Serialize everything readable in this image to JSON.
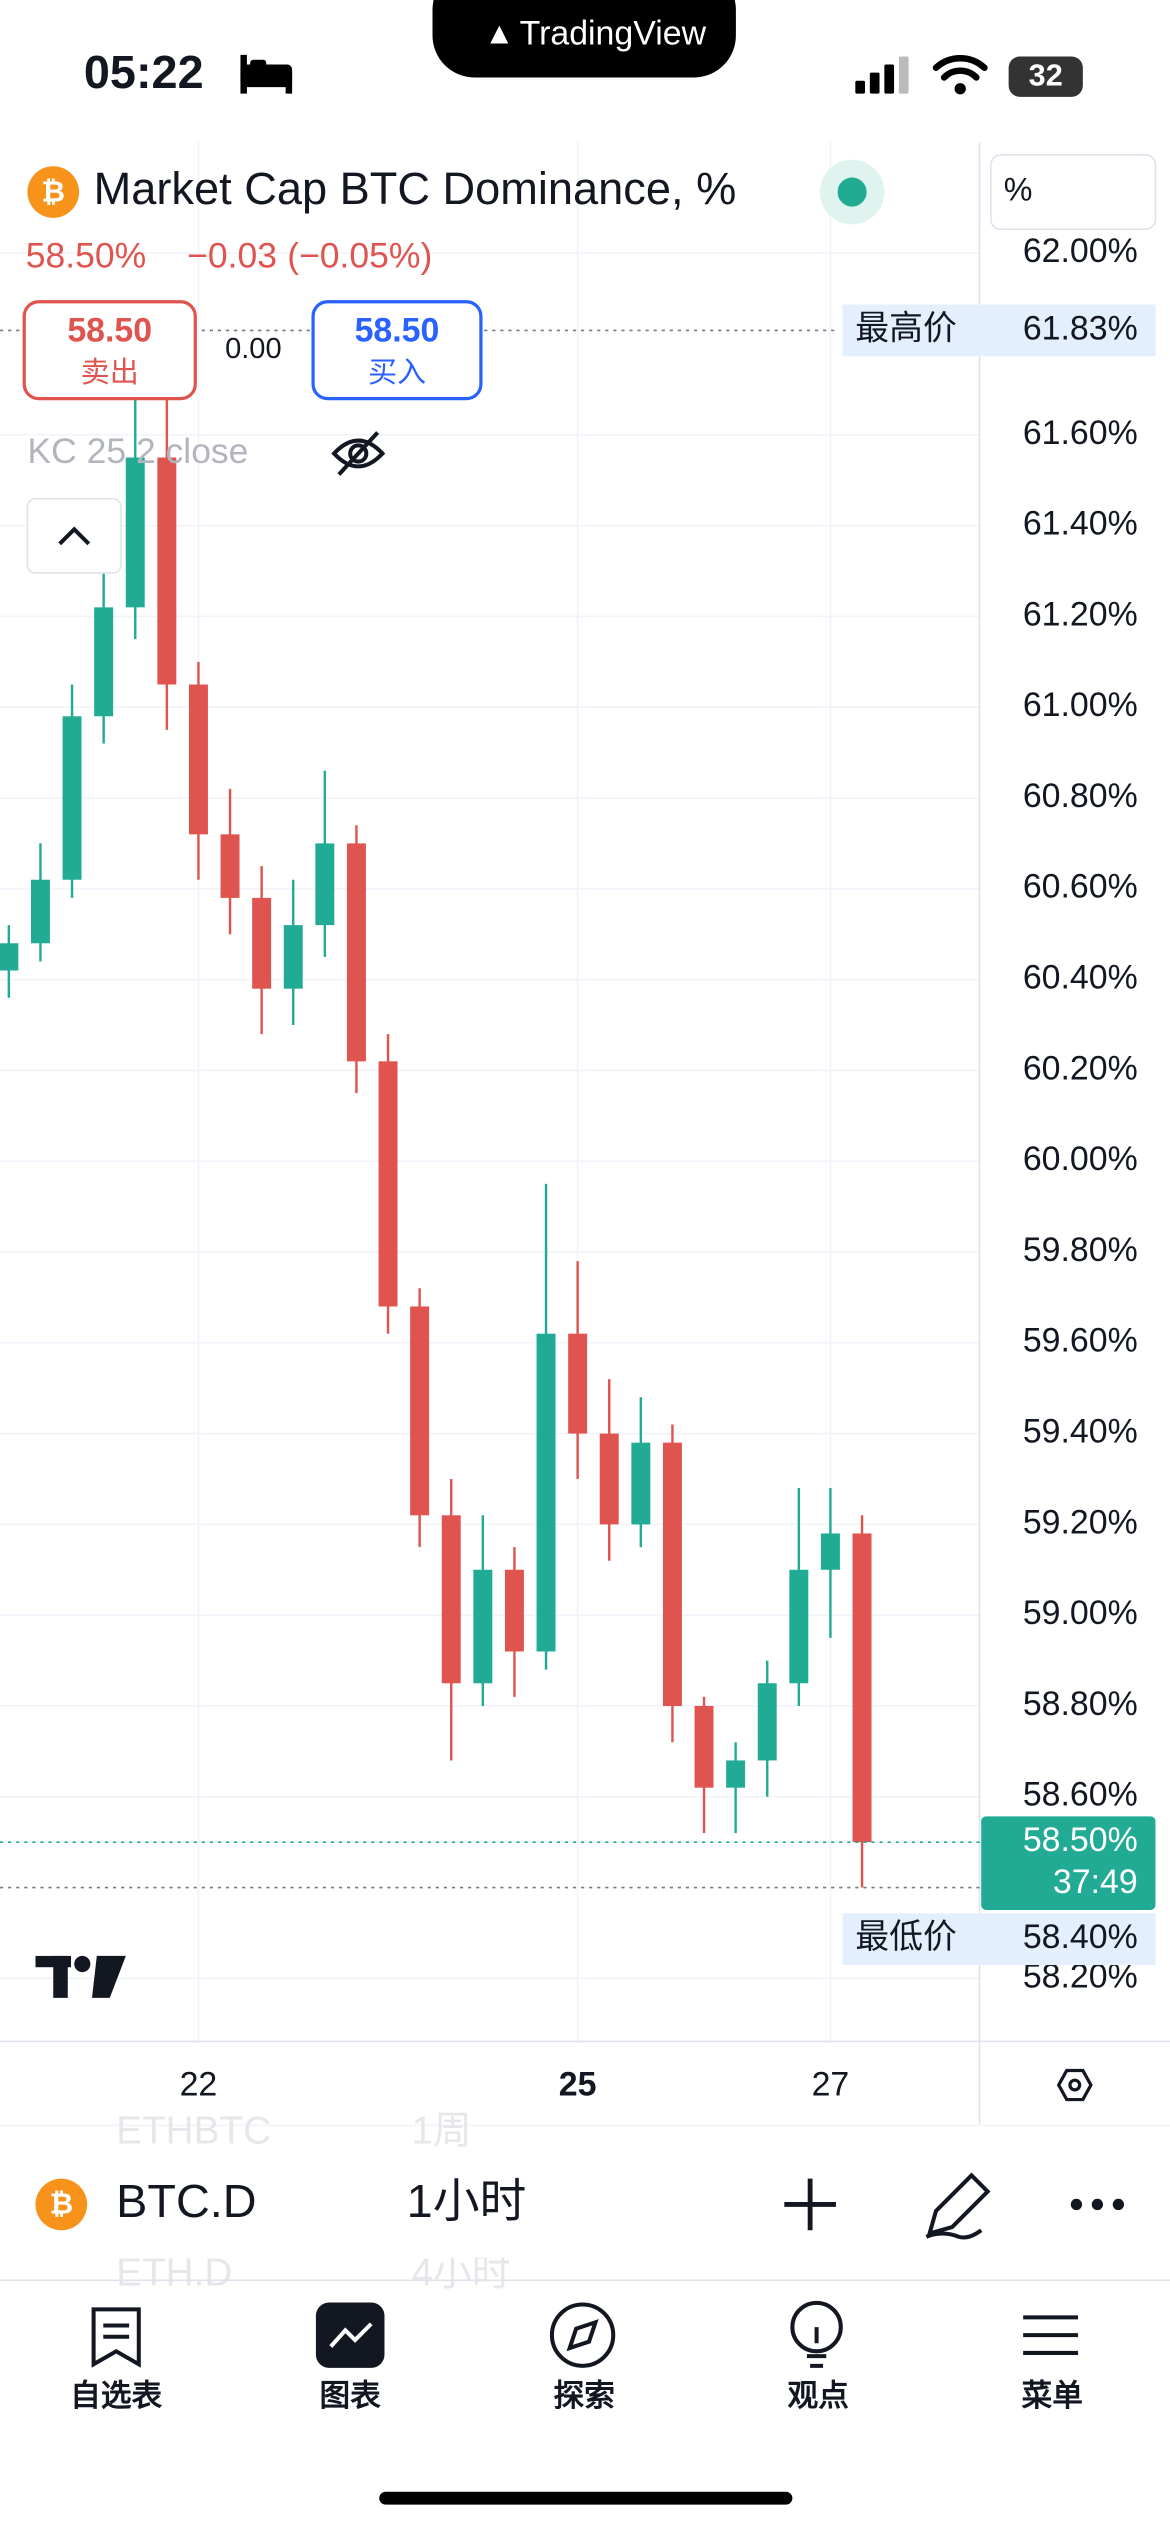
{
  "status_bar": {
    "time": "05:22",
    "battery": "32"
  },
  "island": {
    "brand": "TradingView"
  },
  "symbol": {
    "title": "Market Cap BTC Dominance, %",
    "last": "58.50%",
    "change": "−0.03",
    "change_pct": "(−0.05%)"
  },
  "trade": {
    "sell_price": "58.50",
    "sell_label": "卖出",
    "spread": "0.00",
    "buy_price": "58.50",
    "buy_label": "买入"
  },
  "indicator": {
    "label": "KC 25 2 close"
  },
  "scale_unit": "%",
  "chart_data": {
    "type": "candlestick",
    "x": [
      20.5,
      20.75,
      21,
      21.25,
      21.5,
      21.75,
      22,
      22.25,
      22.5,
      22.75,
      23,
      23.25,
      23.5,
      23.75,
      24,
      24.25,
      24.5,
      24.75,
      25,
      25.25,
      25.5,
      25.75,
      26,
      26.25,
      26.5,
      26.75,
      27,
      27.25
    ],
    "open": [
      60.42,
      60.48,
      60.62,
      60.98,
      61.22,
      61.55,
      61.05,
      60.72,
      60.58,
      60.38,
      60.52,
      60.7,
      60.22,
      59.68,
      59.22,
      58.85,
      59.1,
      58.92,
      59.62,
      59.4,
      59.2,
      59.38,
      58.8,
      58.62,
      58.68,
      58.85,
      59.1,
      59.18
    ],
    "high": [
      60.52,
      60.7,
      61.05,
      61.3,
      61.83,
      61.7,
      61.1,
      60.82,
      60.65,
      60.62,
      60.86,
      60.74,
      60.28,
      59.72,
      59.3,
      59.22,
      59.15,
      59.95,
      59.78,
      59.52,
      59.48,
      59.42,
      58.82,
      58.72,
      58.9,
      59.28,
      59.28,
      59.22
    ],
    "low": [
      60.36,
      60.44,
      60.58,
      60.92,
      61.15,
      60.95,
      60.62,
      60.5,
      60.28,
      60.3,
      60.45,
      60.15,
      59.62,
      59.15,
      58.68,
      58.8,
      58.82,
      58.88,
      59.3,
      59.12,
      59.15,
      58.72,
      58.52,
      58.52,
      58.6,
      58.8,
      58.95,
      58.4
    ],
    "close": [
      60.48,
      60.62,
      60.98,
      61.22,
      61.55,
      61.05,
      60.72,
      60.58,
      60.38,
      60.52,
      60.7,
      60.22,
      59.68,
      59.22,
      58.85,
      59.1,
      58.92,
      59.62,
      59.4,
      59.2,
      59.38,
      58.8,
      58.62,
      58.68,
      58.85,
      59.1,
      59.18,
      58.5
    ],
    "up_color": "#22ab94",
    "down_color": "#e0544f",
    "xlim": [
      20.43,
      28.18
    ],
    "xticks": [
      22,
      25,
      27
    ],
    "ylim": [
      58.061,
      62.245
    ],
    "yticks": [
      {
        "value": 62.0,
        "label": "62.00%"
      },
      {
        "value": 61.6,
        "label": "61.60%"
      },
      {
        "value": 61.4,
        "label": "61.40%"
      },
      {
        "value": 61.2,
        "label": "61.20%"
      },
      {
        "value": 61.0,
        "label": "61.00%"
      },
      {
        "value": 60.8,
        "label": "60.80%"
      },
      {
        "value": 60.6,
        "label": "60.60%"
      },
      {
        "value": 60.4,
        "label": "60.40%"
      },
      {
        "value": 60.2,
        "label": "60.20%"
      },
      {
        "value": 60.0,
        "label": "60.00%"
      },
      {
        "value": 59.8,
        "label": "59.80%"
      },
      {
        "value": 59.6,
        "label": "59.60%"
      },
      {
        "value": 59.4,
        "label": "59.40%"
      },
      {
        "value": 59.2,
        "label": "59.20%"
      },
      {
        "value": 59.0,
        "label": "59.00%"
      },
      {
        "value": 58.8,
        "label": "58.80%"
      },
      {
        "value": 58.6,
        "label": "58.60%"
      },
      {
        "value": 58.2,
        "label": "58.20%"
      }
    ],
    "grid": true,
    "markers": {
      "high": {
        "label": "最高价",
        "value": 61.83,
        "value_label": "61.83%"
      },
      "last": {
        "value": 58.5,
        "value_label": "58.50%",
        "countdown": "37:49"
      },
      "low": {
        "label": "最低价",
        "value": 58.4,
        "value_label": "58.40%"
      }
    }
  },
  "toolbar": {
    "symbol": "BTC.D",
    "interval": "1小时",
    "ghost_above": [
      "ETHBTC",
      "1周"
    ],
    "ghost_below": [
      "ETH.D",
      "4小时"
    ]
  },
  "tabs": [
    "自选表",
    "图表",
    "探索",
    "观点",
    "菜单"
  ]
}
